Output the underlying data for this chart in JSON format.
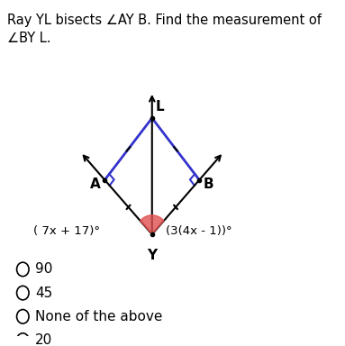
{
  "title_line1": "Ray YL bisects ∠AY B. Find the measurement of",
  "title_line2": "∠BY L.",
  "bg_color": "#ffffff",
  "text_color": "#000000",
  "angle_label_left": "( 7x + 17)°",
  "angle_label_right": "(3(4x - 1))°",
  "choices": [
    "90",
    "45",
    "None of the above",
    "20"
  ],
  "blue_angle_color": "#3333cc",
  "red_wedge_color": "#e05050",
  "line_color": "#000000"
}
